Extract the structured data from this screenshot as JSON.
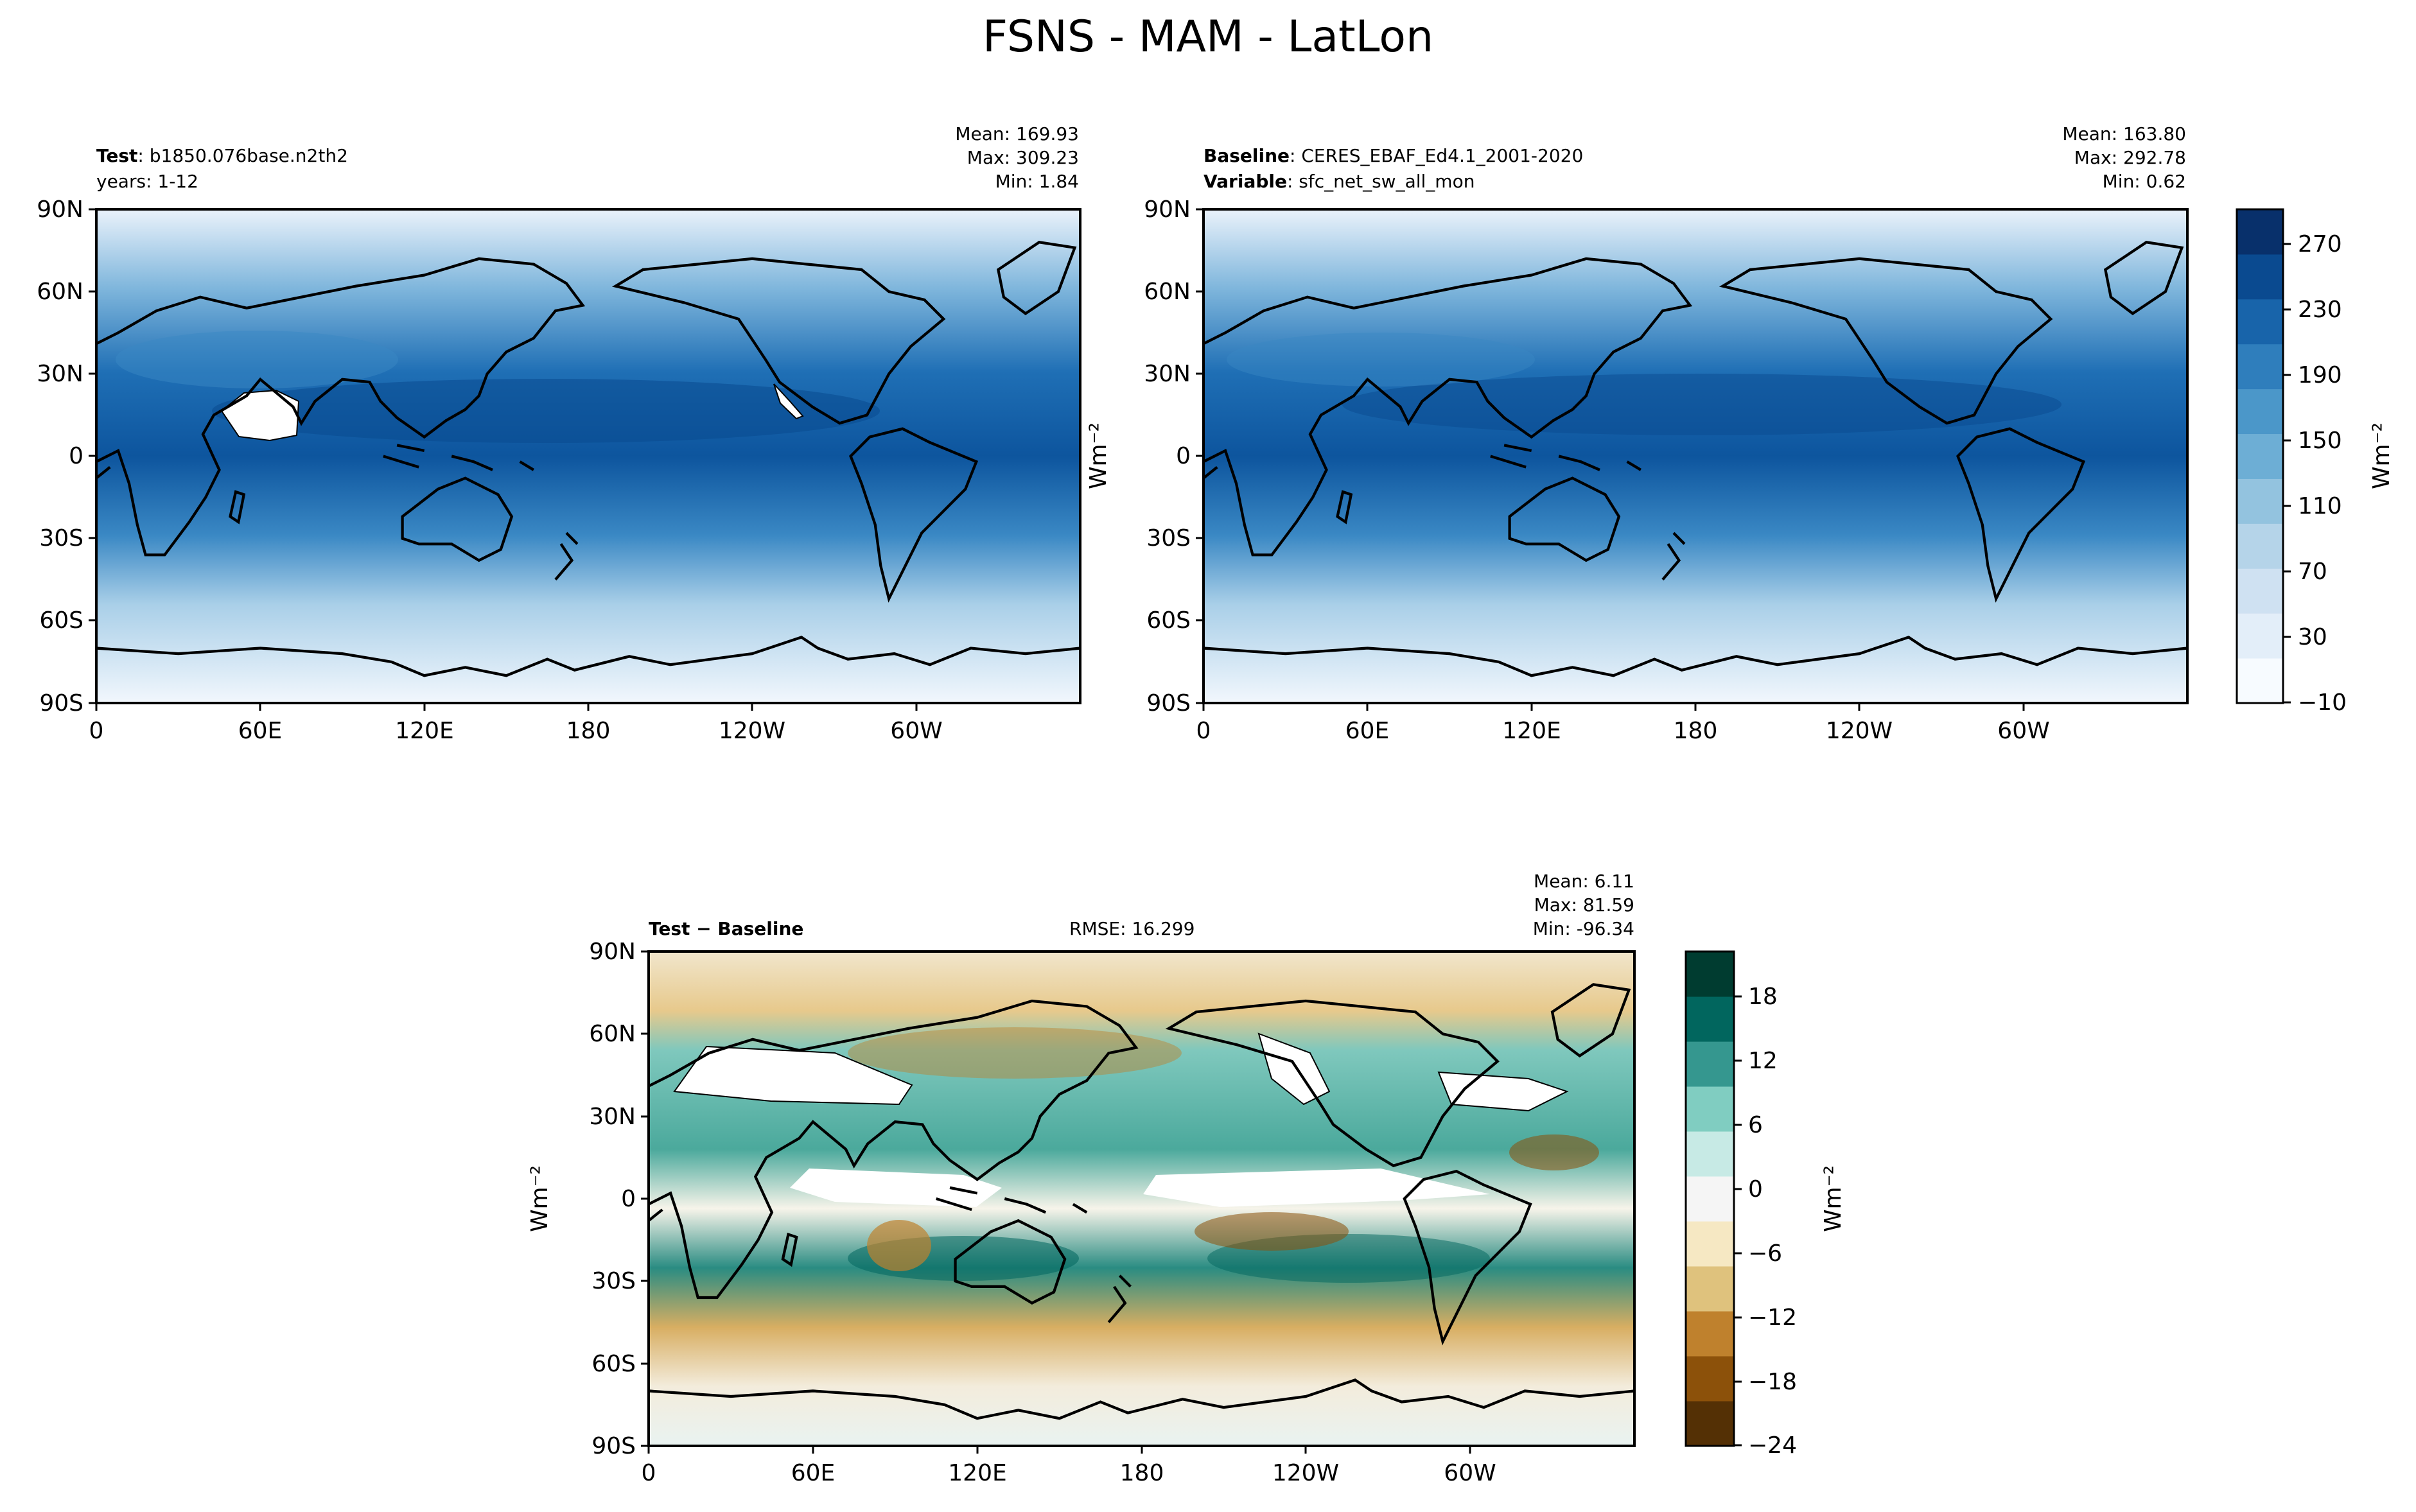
{
  "title": "FSNS - MAM - LatLon",
  "axes": {
    "lat_ticks": [
      "90N",
      "60N",
      "30N",
      "0",
      "30S",
      "60S",
      "90S"
    ],
    "lon_ticks": [
      "0",
      "60E",
      "120E",
      "180",
      "120W",
      "60W"
    ]
  },
  "panels": {
    "test": {
      "label_bold": "Test",
      "label_rest": ": b1850.076base.n2th2",
      "line2": "years: 1-12",
      "stats": [
        "Mean: 169.93",
        "Max: 309.23",
        "Min:  1.84"
      ]
    },
    "baseline": {
      "label_bold": "Baseline",
      "label_rest": ": CERES_EBAF_Ed4.1_2001-2020",
      "line2_bold": "Variable",
      "line2_rest": ": sfc_net_sw_all_mon",
      "stats": [
        "Mean: 163.80",
        "Max: 292.78",
        "Min:  0.62"
      ]
    },
    "diff": {
      "label": "Test − Baseline",
      "rmse": "RMSE: 16.299",
      "stats": [
        "Mean:  6.11",
        "Max: 81.59",
        "Min: -96.34"
      ]
    }
  },
  "colorbars": {
    "main": {
      "ticks": [
        "270",
        "230",
        "190",
        "150",
        "110",
        "70",
        "30",
        "−10"
      ],
      "unit": "Wm⁻²",
      "colors": [
        "#f7fbff",
        "#e3eef9",
        "#cfe1f2",
        "#b5d4e9",
        "#93c3df",
        "#6daed5",
        "#4b97c9",
        "#2f7ebc",
        "#1864aa",
        "#0a4a90",
        "#08306b"
      ]
    },
    "diff": {
      "ticks": [
        "18",
        "12",
        "6",
        "0",
        "−6",
        "−12",
        "−18",
        "−24"
      ],
      "unit": "Wm⁻²",
      "colors": [
        "#543005",
        "#8c510a",
        "#bf812d",
        "#dfc27d",
        "#f6e8c3",
        "#f5f5f5",
        "#c7eae5",
        "#80cdc1",
        "#35978f",
        "#01665e",
        "#003c30"
      ]
    }
  },
  "side_labels": {
    "top_unit": "Wm⁻²",
    "bottom_unit": "Wm⁻²"
  }
}
